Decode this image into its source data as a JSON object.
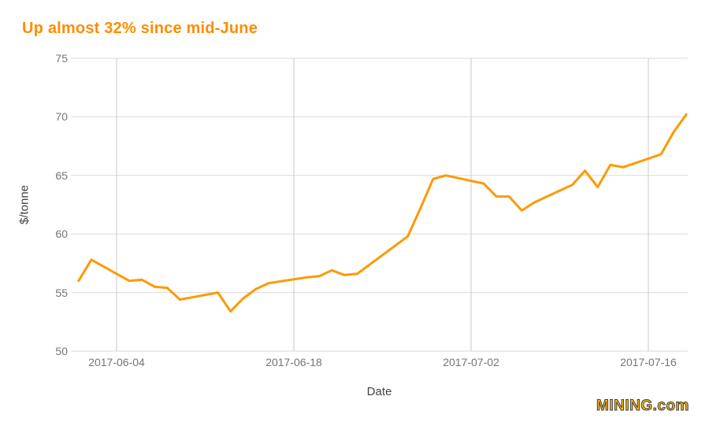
{
  "title": {
    "text": "Up almost 32% since mid-June"
  },
  "branding": {
    "logo_text": "MINING.com"
  },
  "colors": {
    "title": "#ff8c00",
    "line": "#ff9900",
    "grid_horizontal": "#d9d9d9",
    "grid_vertical": "#c9c9c9",
    "tick_label": "#757575",
    "axis_title": "#424242",
    "logo_fill": "#fdb813",
    "logo_outline": "#3d3d3d",
    "background": "#ffffff"
  },
  "chart_data": {
    "type": "line",
    "title": "Up almost 32% since mid-June",
    "xlabel": "Date",
    "ylabel": "$/tonne",
    "ylim": [
      50,
      75
    ],
    "y_ticks": [
      50,
      55,
      60,
      65,
      70,
      75
    ],
    "x_ticks": [
      "2017-06-04",
      "2017-06-18",
      "2017-07-02",
      "2017-07-16"
    ],
    "grid": true,
    "legend": "none",
    "x": [
      "2017-06-01",
      "2017-06-02",
      "2017-06-05",
      "2017-06-06",
      "2017-06-07",
      "2017-06-08",
      "2017-06-09",
      "2017-06-12",
      "2017-06-13",
      "2017-06-14",
      "2017-06-15",
      "2017-06-16",
      "2017-06-19",
      "2017-06-20",
      "2017-06-21",
      "2017-06-22",
      "2017-06-23",
      "2017-06-26",
      "2017-06-27",
      "2017-06-28",
      "2017-06-29",
      "2017-06-30",
      "2017-07-03",
      "2017-07-04",
      "2017-07-05",
      "2017-07-06",
      "2017-07-07",
      "2017-07-10",
      "2017-07-11",
      "2017-07-12",
      "2017-07-13",
      "2017-07-14",
      "2017-07-17",
      "2017-07-18",
      "2017-07-19"
    ],
    "values": [
      56.0,
      57.8,
      56.0,
      56.1,
      55.5,
      55.4,
      54.4,
      55.0,
      53.4,
      54.5,
      55.3,
      55.8,
      56.3,
      56.4,
      56.9,
      56.5,
      56.6,
      59.0,
      59.8,
      62.2,
      64.7,
      65.0,
      64.3,
      63.2,
      63.2,
      62.0,
      62.7,
      64.2,
      65.4,
      64.0,
      65.9,
      65.7,
      66.8,
      68.7,
      70.2
    ]
  }
}
